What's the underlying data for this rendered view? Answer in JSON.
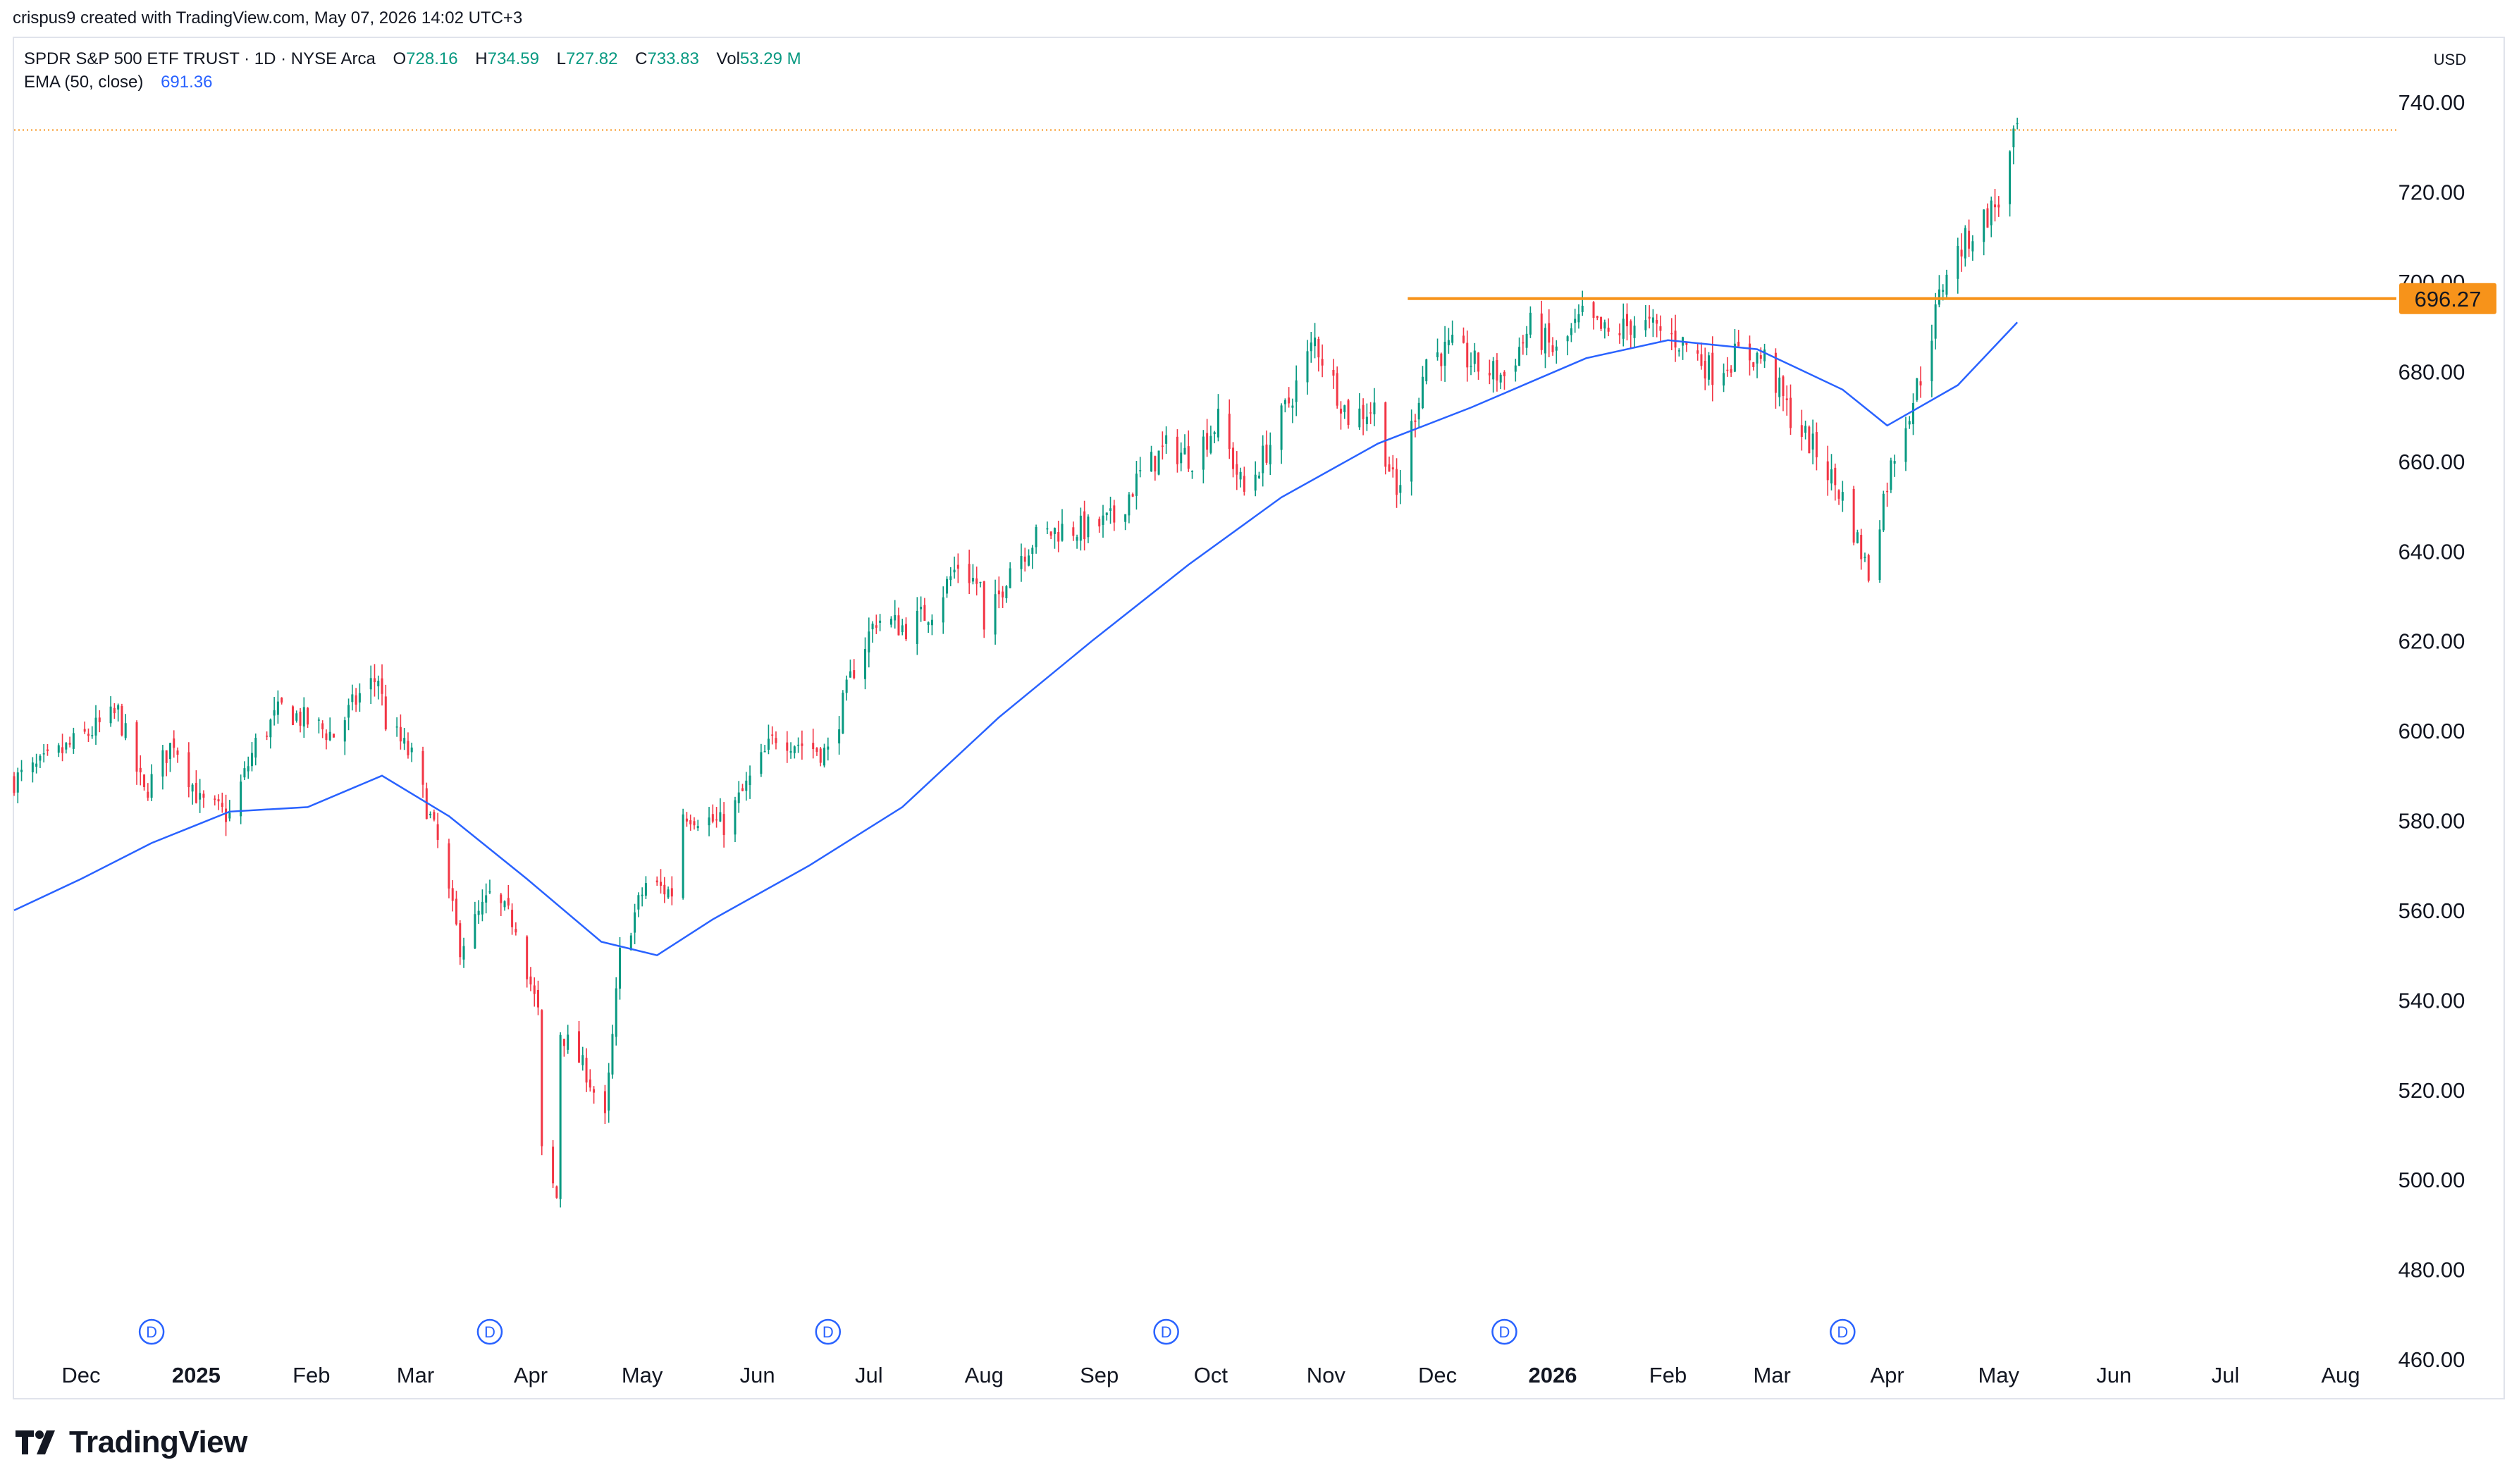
{
  "attribution": "crispus9 created with TradingView.com, May 07, 2026 14:02 UTC+3",
  "legend": {
    "symbol": "SPDR S&P 500 ETF TRUST · 1D · NYSE Arca",
    "o_label": "O",
    "o_value": "728.16",
    "h_label": "H",
    "h_value": "734.59",
    "l_label": "L",
    "l_value": "727.82",
    "c_label": "C",
    "c_value": "733.83",
    "vol_label": "Vol",
    "vol_value": "53.29 M",
    "ema_label": "EMA (50, close)",
    "ema_value": "691.36"
  },
  "currency": "USD",
  "brand": "TradingView",
  "colors": {
    "up": "#089981",
    "down": "#f23645",
    "ema": "#2962ff",
    "resistance": "#f7931a",
    "last_price_line": "#f7931a"
  },
  "chart_data": {
    "type": "candlestick",
    "resistance_label": "696.27",
    "x_ticks": [
      {
        "label": "Dec",
        "date": "2024-12-01"
      },
      {
        "label": "2025",
        "date": "2025-01-01",
        "bold": true
      },
      {
        "label": "Feb",
        "date": "2025-02-01"
      },
      {
        "label": "Mar",
        "date": "2025-03-01"
      },
      {
        "label": "Apr",
        "date": "2025-04-01"
      },
      {
        "label": "May",
        "date": "2025-05-01"
      },
      {
        "label": "Jun",
        "date": "2025-06-01"
      },
      {
        "label": "Jul",
        "date": "2025-07-01"
      },
      {
        "label": "Aug",
        "date": "2025-08-01"
      },
      {
        "label": "Sep",
        "date": "2025-09-01"
      },
      {
        "label": "Oct",
        "date": "2025-10-01"
      },
      {
        "label": "Nov",
        "date": "2025-11-01"
      },
      {
        "label": "Dec",
        "date": "2025-12-01"
      },
      {
        "label": "2026",
        "date": "2026-01-01",
        "bold": true
      },
      {
        "label": "Feb",
        "date": "2026-02-01"
      },
      {
        "label": "Mar",
        "date": "2026-03-01"
      },
      {
        "label": "Apr",
        "date": "2026-04-01"
      },
      {
        "label": "May",
        "date": "2026-05-01"
      },
      {
        "label": "Jun",
        "date": "2026-06-01"
      },
      {
        "label": "Jul",
        "date": "2026-07-01"
      },
      {
        "label": "Aug",
        "date": "2026-08-01"
      }
    ],
    "y_ticks": [
      "740.00",
      "720.00",
      "700.00",
      "680.00",
      "660.00",
      "640.00",
      "620.00",
      "600.00",
      "580.00",
      "560.00",
      "540.00",
      "520.00",
      "500.00",
      "480.00",
      "460.00"
    ],
    "ylim": [
      452,
      754
    ],
    "xlim": [
      "2024-11-13",
      "2026-08-16"
    ],
    "dividends": [
      {
        "label": "D",
        "date": "2024-12-20"
      },
      {
        "label": "D",
        "date": "2025-03-21"
      },
      {
        "label": "D",
        "date": "2025-06-20"
      },
      {
        "label": "D",
        "date": "2025-09-19"
      },
      {
        "label": "D",
        "date": "2025-12-19"
      },
      {
        "label": "D",
        "date": "2026-03-20"
      }
    ],
    "resistance": {
      "value": 696.27,
      "from": "2025-11-23"
    },
    "last_close": 733.83,
    "price": [
      [
        "2024-11-13",
        589
      ],
      [
        "2024-11-20",
        592
      ],
      [
        "2024-11-27",
        596
      ],
      [
        "2024-12-04",
        600
      ],
      [
        "2024-12-11",
        604
      ],
      [
        "2024-12-18",
        586
      ],
      [
        "2024-12-26",
        598
      ],
      [
        "2025-01-02",
        584
      ],
      [
        "2025-01-10",
        581
      ],
      [
        "2025-01-17",
        597
      ],
      [
        "2025-01-24",
        605
      ],
      [
        "2025-01-31",
        602
      ],
      [
        "2025-02-07",
        599
      ],
      [
        "2025-02-14",
        608
      ],
      [
        "2025-02-19",
        612
      ],
      [
        "2025-02-21",
        602
      ],
      [
        "2025-02-28",
        594
      ],
      [
        "2025-03-07",
        575
      ],
      [
        "2025-03-13",
        552
      ],
      [
        "2025-03-21",
        563
      ],
      [
        "2025-03-28",
        557
      ],
      [
        "2025-04-03",
        537
      ],
      [
        "2025-04-04",
        506
      ],
      [
        "2025-04-08",
        496
      ],
      [
        "2025-04-09",
        533
      ],
      [
        "2025-04-16",
        524
      ],
      [
        "2025-04-21",
        513
      ],
      [
        "2025-04-25",
        550
      ],
      [
        "2025-05-02",
        566
      ],
      [
        "2025-05-09",
        564
      ],
      [
        "2025-05-12",
        582
      ],
      [
        "2025-05-23",
        579
      ],
      [
        "2025-05-30",
        589
      ],
      [
        "2025-06-06",
        599
      ],
      [
        "2025-06-13",
        597
      ],
      [
        "2025-06-20",
        595
      ],
      [
        "2025-06-27",
        614
      ],
      [
        "2025-07-03",
        625
      ],
      [
        "2025-07-11",
        623
      ],
      [
        "2025-07-18",
        627
      ],
      [
        "2025-07-25",
        637
      ],
      [
        "2025-07-31",
        632
      ],
      [
        "2025-08-01",
        621
      ],
      [
        "2025-08-08",
        637
      ],
      [
        "2025-08-15",
        643
      ],
      [
        "2025-08-22",
        645
      ],
      [
        "2025-08-29",
        645
      ],
      [
        "2025-09-05",
        647
      ],
      [
        "2025-09-12",
        657
      ],
      [
        "2025-09-19",
        663
      ],
      [
        "2025-09-26",
        661
      ],
      [
        "2025-10-03",
        669
      ],
      [
        "2025-10-10",
        653
      ],
      [
        "2025-10-17",
        664
      ],
      [
        "2025-10-24",
        677
      ],
      [
        "2025-10-29",
        687
      ],
      [
        "2025-11-07",
        670
      ],
      [
        "2025-11-14",
        672
      ],
      [
        "2025-11-20",
        652
      ],
      [
        "2025-11-28",
        683
      ],
      [
        "2025-12-05",
        685
      ],
      [
        "2025-12-12",
        681
      ],
      [
        "2025-12-19",
        679
      ],
      [
        "2025-12-26",
        690
      ],
      [
        "2026-01-02",
        684
      ],
      [
        "2026-01-09",
        692
      ],
      [
        "2026-01-16",
        688
      ],
      [
        "2026-01-23",
        691
      ],
      [
        "2026-01-30",
        689
      ],
      [
        "2026-02-06",
        686
      ],
      [
        "2026-02-13",
        680
      ],
      [
        "2026-02-20",
        684
      ],
      [
        "2026-02-27",
        683
      ],
      [
        "2026-03-06",
        670
      ],
      [
        "2026-03-13",
        662
      ],
      [
        "2026-03-20",
        652
      ],
      [
        "2026-03-27",
        635
      ],
      [
        "2026-03-31",
        652
      ],
      [
        "2026-04-03",
        662
      ],
      [
        "2026-04-10",
        679
      ],
      [
        "2026-04-17",
        703
      ],
      [
        "2026-04-24",
        711
      ],
      [
        "2026-05-01",
        718
      ],
      [
        "2026-05-06",
        734
      ]
    ],
    "ema": [
      [
        "2024-11-13",
        560
      ],
      [
        "2024-12-01",
        567
      ],
      [
        "2024-12-20",
        575
      ],
      [
        "2025-01-10",
        582
      ],
      [
        "2025-01-31",
        583
      ],
      [
        "2025-02-20",
        590
      ],
      [
        "2025-03-10",
        581
      ],
      [
        "2025-03-31",
        567
      ],
      [
        "2025-04-20",
        553
      ],
      [
        "2025-05-05",
        550
      ],
      [
        "2025-05-20",
        558
      ],
      [
        "2025-06-15",
        570
      ],
      [
        "2025-07-10",
        583
      ],
      [
        "2025-08-05",
        603
      ],
      [
        "2025-08-30",
        620
      ],
      [
        "2025-09-25",
        637
      ],
      [
        "2025-10-20",
        652
      ],
      [
        "2025-11-15",
        664
      ],
      [
        "2025-12-10",
        672
      ],
      [
        "2026-01-10",
        683
      ],
      [
        "2026-02-01",
        687
      ],
      [
        "2026-02-25",
        685
      ],
      [
        "2026-03-20",
        676
      ],
      [
        "2026-04-01",
        668
      ],
      [
        "2026-04-20",
        677
      ],
      [
        "2026-05-06",
        691
      ]
    ]
  }
}
